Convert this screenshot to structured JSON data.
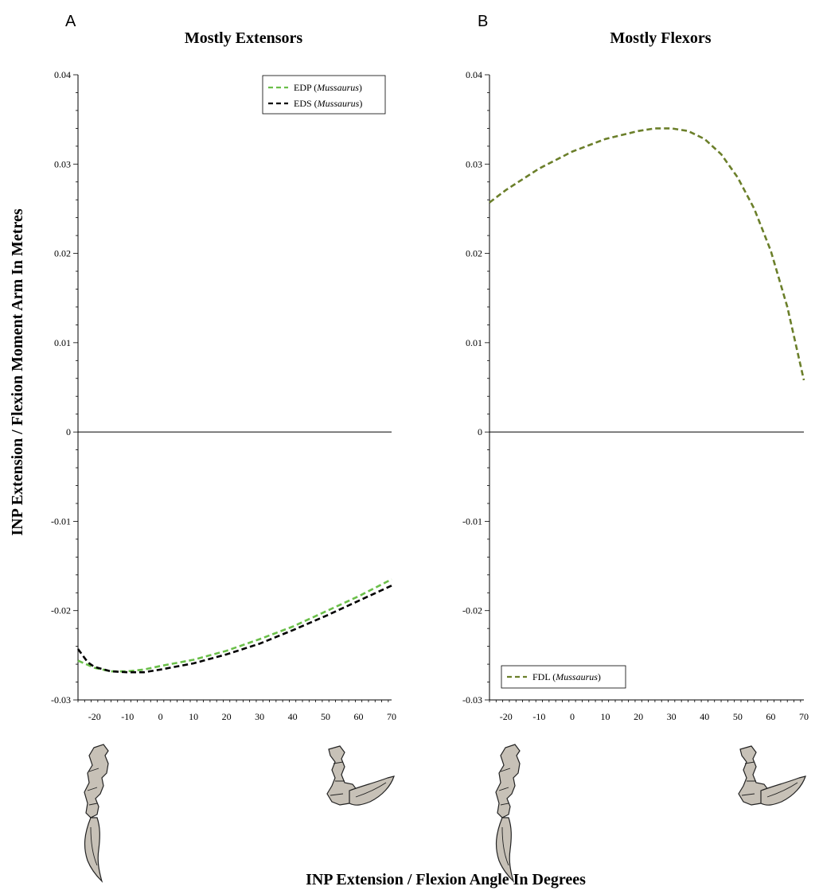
{
  "figure": {
    "ylabel": "INP Extension / Flexion Moment Arm In Metres",
    "xlabel": "INP Extension / Flexion Angle In Degrees"
  },
  "chart_data": [
    {
      "type": "line",
      "panel_letter": "A",
      "title": "Mostly Extensors",
      "xlim": [
        -25,
        70
      ],
      "ylim": [
        -0.03,
        0.04
      ],
      "xticks": [
        -20,
        -10,
        0,
        10,
        20,
        30,
        40,
        50,
        60,
        70
      ],
      "yticks": [
        -0.03,
        -0.02,
        -0.01,
        0,
        0.01,
        0.02,
        0.03,
        0.04
      ],
      "ytick_labels": [
        "-0.03",
        "-0.02",
        "-0.01",
        "0",
        "0.01",
        "0.02",
        "0.03",
        "0.04"
      ],
      "zero_line": true,
      "legend_position": "top-right",
      "series": [
        {
          "name": "EDP",
          "taxon": "Mussaurus",
          "color": "#6bbf4a",
          "style": "dashed",
          "x": [
            -25,
            -20,
            -15,
            -10,
            -5,
            0,
            10,
            20,
            30,
            40,
            50,
            60,
            70
          ],
          "y": [
            -0.0256,
            -0.0264,
            -0.0268,
            -0.0268,
            -0.0266,
            -0.0262,
            -0.0255,
            -0.0245,
            -0.0232,
            -0.0218,
            -0.0201,
            -0.0184,
            -0.0165
          ]
        },
        {
          "name": "EDS",
          "taxon": "Mussaurus",
          "color": "#000000",
          "style": "dashed",
          "x": [
            -25,
            -22,
            -20,
            -15,
            -10,
            -5,
            0,
            10,
            20,
            30,
            40,
            50,
            60,
            70
          ],
          "y": [
            -0.0243,
            -0.0258,
            -0.0263,
            -0.0268,
            -0.0269,
            -0.0269,
            -0.0266,
            -0.0259,
            -0.0249,
            -0.0237,
            -0.0222,
            -0.0206,
            -0.0189,
            -0.0172
          ]
        }
      ]
    },
    {
      "type": "line",
      "panel_letter": "B",
      "title": "Mostly Flexors",
      "xlim": [
        -25,
        70
      ],
      "ylim": [
        -0.03,
        0.04
      ],
      "xticks": [
        -20,
        -10,
        0,
        10,
        20,
        30,
        40,
        50,
        60,
        70
      ],
      "yticks": [
        -0.03,
        -0.02,
        -0.01,
        0,
        0.01,
        0.02,
        0.03,
        0.04
      ],
      "ytick_labels": [
        "-0.03",
        "-0.02",
        "-0.01",
        "0",
        "0.01",
        "0.02",
        "0.03",
        "0.04"
      ],
      "zero_line": true,
      "legend_position": "bottom-left",
      "series": [
        {
          "name": "FDL",
          "taxon": "Mussaurus",
          "color": "#6b7f2a",
          "style": "dashed",
          "x": [
            -25,
            -20,
            -10,
            0,
            10,
            20,
            25,
            30,
            35,
            40,
            45,
            50,
            55,
            60,
            65,
            70
          ],
          "y": [
            0.0257,
            0.0271,
            0.0295,
            0.0314,
            0.0328,
            0.0337,
            0.034,
            0.034,
            0.0337,
            0.0328,
            0.0311,
            0.0285,
            0.025,
            0.0203,
            0.014,
            0.0058
          ]
        }
      ]
    }
  ]
}
